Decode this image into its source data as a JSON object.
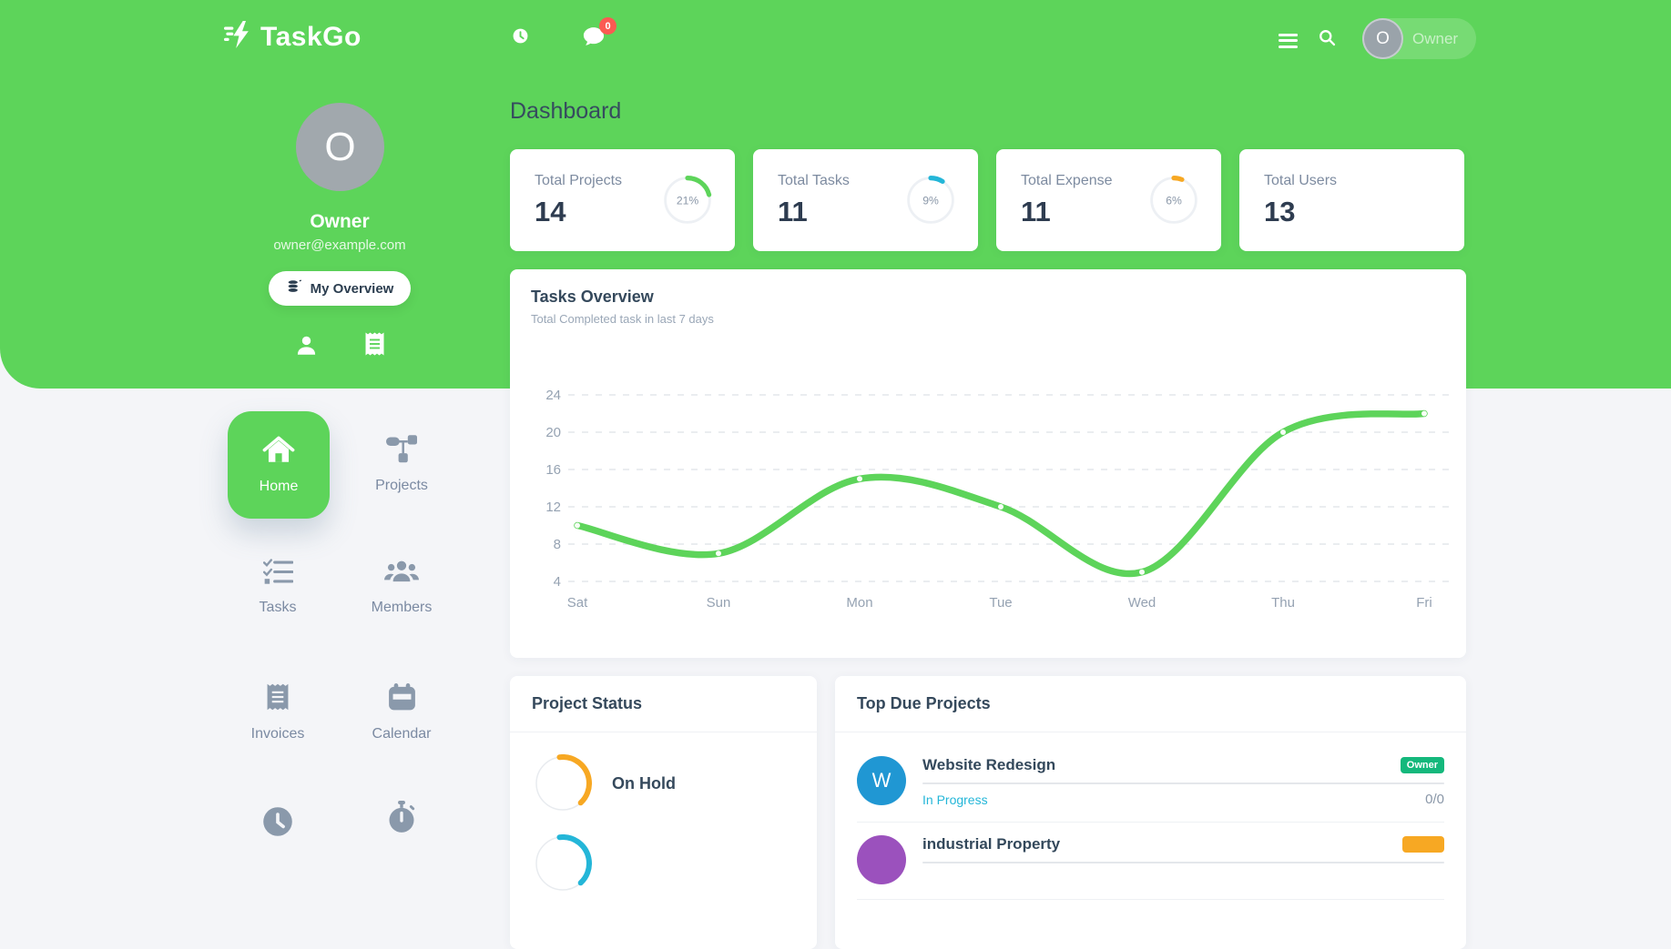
{
  "app": {
    "name": "TaskGo"
  },
  "colors": {
    "accent_green": "#5dd45a",
    "cyan": "#24b6d8",
    "orange": "#f7a823",
    "red_badge": "#fb5a52",
    "badge_green": "#14b87c",
    "avatar_blue": "#2097d3",
    "avatar_purple": "#9b51bd"
  },
  "topbar": {
    "chat_badge": "0",
    "user_initial": "O",
    "user_name": "Owner"
  },
  "profile": {
    "initial": "O",
    "name": "Owner",
    "email": "owner@example.com",
    "overview_button": "My Overview"
  },
  "nav": {
    "items": [
      {
        "label": "Home",
        "icon": "home-icon",
        "active": true
      },
      {
        "label": "Projects",
        "icon": "projects-icon",
        "active": false
      },
      {
        "label": "Tasks",
        "icon": "tasks-icon",
        "active": false
      },
      {
        "label": "Members",
        "icon": "members-icon",
        "active": false
      },
      {
        "label": "Invoices",
        "icon": "invoices-icon",
        "active": false
      },
      {
        "label": "Calendar",
        "icon": "calendar-icon",
        "active": false
      },
      {
        "label": "",
        "icon": "clock-icon",
        "active": false
      },
      {
        "label": "",
        "icon": "stopwatch-icon",
        "active": false
      }
    ]
  },
  "page": {
    "title": "Dashboard"
  },
  "stats": [
    {
      "label": "Total Projects",
      "value": "14",
      "percent": 21,
      "percent_text": "21%",
      "color": "#5dd45a"
    },
    {
      "label": "Total Tasks",
      "value": "11",
      "percent": 9,
      "percent_text": "9%",
      "color": "#24b6d8"
    },
    {
      "label": "Total Expense",
      "value": "11",
      "percent": 6,
      "percent_text": "6%",
      "color": "#f7a823"
    },
    {
      "label": "Total Users",
      "value": "13"
    }
  ],
  "tasks_overview": {
    "title": "Tasks Overview",
    "subtitle": "Total Completed task in last 7 days"
  },
  "chart_data": {
    "type": "line",
    "title": "Tasks Overview",
    "categories": [
      "Sat",
      "Sun",
      "Mon",
      "Tue",
      "Wed",
      "Thu",
      "Fri"
    ],
    "values": [
      10,
      7,
      15,
      12,
      5,
      20,
      22
    ],
    "yticks": [
      4,
      8,
      12,
      16,
      20,
      24
    ],
    "ylim": [
      4,
      24
    ],
    "line_color": "#5dd45a",
    "grid": "dashed-horizontal",
    "legend": "none"
  },
  "project_status": {
    "title": "Project Status",
    "items": [
      {
        "label": "On Hold",
        "percent": 40,
        "color": "#f7a823"
      },
      {
        "label": "",
        "percent": 40,
        "color": "#24b6d8"
      }
    ]
  },
  "top_due_projects": {
    "title": "Top Due Projects",
    "rows": [
      {
        "initial": "W",
        "avatar_color": "#2097d3",
        "name": "Website Redesign",
        "badge": "Owner",
        "badge_color": "#14b87c",
        "status": "In Progress",
        "status_color": "#24b6d8",
        "count": "0/0"
      },
      {
        "initial": "",
        "avatar_color": "#9b51bd",
        "name": "industrial Property",
        "badge": "",
        "badge_color": "#f7a823",
        "status": "",
        "status_color": "",
        "count": ""
      }
    ]
  }
}
